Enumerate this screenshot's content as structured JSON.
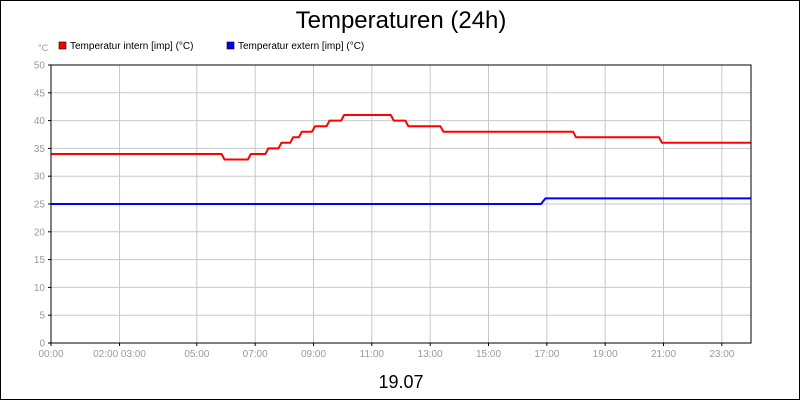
{
  "chart_data": {
    "type": "line",
    "title": "Temperaturen (24h)",
    "footer_label": "19.07",
    "y_unit": "°C",
    "ylim": [
      0,
      50
    ],
    "y_ticks": [
      0,
      5,
      10,
      15,
      20,
      25,
      30,
      35,
      40,
      45,
      50
    ],
    "xlim": [
      0,
      24
    ],
    "x_ticks": [
      {
        "x": 0,
        "label": "00:00"
      },
      {
        "x": 2.35,
        "label": "02:00 03:00"
      },
      {
        "x": 5,
        "label": "05:00"
      },
      {
        "x": 7,
        "label": "07:00"
      },
      {
        "x": 9,
        "label": "09:00"
      },
      {
        "x": 11,
        "label": "11:00"
      },
      {
        "x": 13,
        "label": "13:00"
      },
      {
        "x": 15,
        "label": "15:00"
      },
      {
        "x": 17,
        "label": "17:00"
      },
      {
        "x": 19,
        "label": "19:00"
      },
      {
        "x": 21,
        "label": "21:00"
      },
      {
        "x": 23,
        "label": "23:00"
      }
    ],
    "grid": true,
    "legend_position": "top-left",
    "series": [
      {
        "name": "Temperatur intern [imp] (°C)",
        "color": "#ff0000",
        "points": [
          [
            0,
            34
          ],
          [
            5.85,
            34
          ],
          [
            5.95,
            33
          ],
          [
            6.75,
            33
          ],
          [
            6.85,
            34
          ],
          [
            7.35,
            34
          ],
          [
            7.45,
            35
          ],
          [
            7.8,
            35
          ],
          [
            7.9,
            36
          ],
          [
            8.2,
            36
          ],
          [
            8.3,
            37
          ],
          [
            8.5,
            37
          ],
          [
            8.6,
            38
          ],
          [
            8.95,
            38
          ],
          [
            9.05,
            39
          ],
          [
            9.45,
            39
          ],
          [
            9.55,
            40
          ],
          [
            9.95,
            40
          ],
          [
            10.05,
            41
          ],
          [
            11.65,
            41
          ],
          [
            11.75,
            40
          ],
          [
            12.15,
            40
          ],
          [
            12.25,
            39
          ],
          [
            13.35,
            39
          ],
          [
            13.45,
            38
          ],
          [
            17.9,
            38
          ],
          [
            18.0,
            37
          ],
          [
            20.85,
            37
          ],
          [
            20.95,
            36
          ],
          [
            24,
            36
          ]
        ]
      },
      {
        "name": "Temperatur extern [imp] (°C)",
        "color": "#0000ff",
        "points": [
          [
            0,
            25
          ],
          [
            16.8,
            25
          ],
          [
            16.95,
            26
          ],
          [
            24,
            26
          ]
        ]
      }
    ]
  }
}
